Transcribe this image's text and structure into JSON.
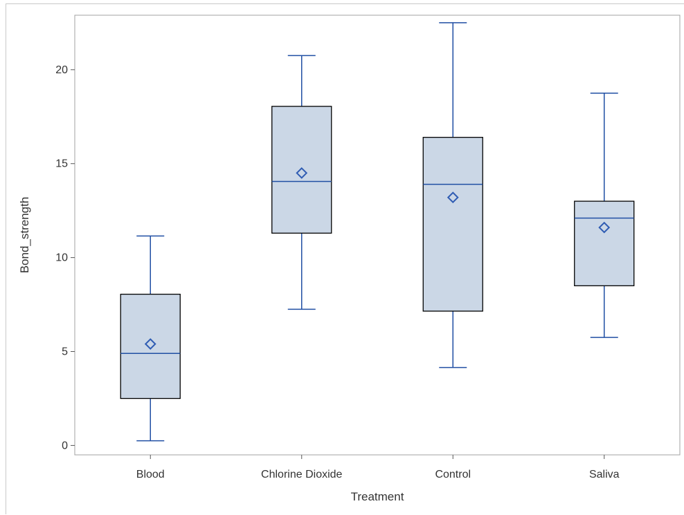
{
  "chart_data": {
    "type": "box",
    "title": "",
    "xlabel": "Treatment",
    "ylabel": "Bond_strength",
    "ylim": [
      -0.5,
      22.9
    ],
    "yticks": [
      0,
      5,
      10,
      15,
      20
    ],
    "ytick_labels": [
      "0",
      "5",
      "10",
      "15",
      "20"
    ],
    "grid": false,
    "legend": "none",
    "categories": [
      "Blood",
      "Chlorine Dioxide",
      "Control",
      "Saliva"
    ],
    "boxes": [
      {
        "category": "Blood",
        "min": 0.25,
        "q1": 2.5,
        "median": 4.9,
        "q3": 8.05,
        "max": 11.15,
        "mean": 5.4
      },
      {
        "category": "Chlorine Dioxide",
        "min": 7.25,
        "q1": 11.3,
        "median": 14.05,
        "q3": 18.05,
        "max": 20.75,
        "mean": 14.5
      },
      {
        "category": "Control",
        "min": 4.15,
        "q1": 7.15,
        "median": 13.9,
        "q3": 16.4,
        "max": 22.5,
        "mean": 13.2
      },
      {
        "category": "Saliva",
        "min": 5.75,
        "q1": 8.5,
        "median": 12.1,
        "q3": 13.0,
        "max": 18.75,
        "mean": 11.6
      }
    ],
    "colors": {
      "box_fill": "#cbd7e6",
      "box_edge": "#000000",
      "whisker": "#1f4ea3",
      "median": "#1f4ea3",
      "mean_marker": "#2f5cb3",
      "frame": "#a0a0a0"
    }
  }
}
